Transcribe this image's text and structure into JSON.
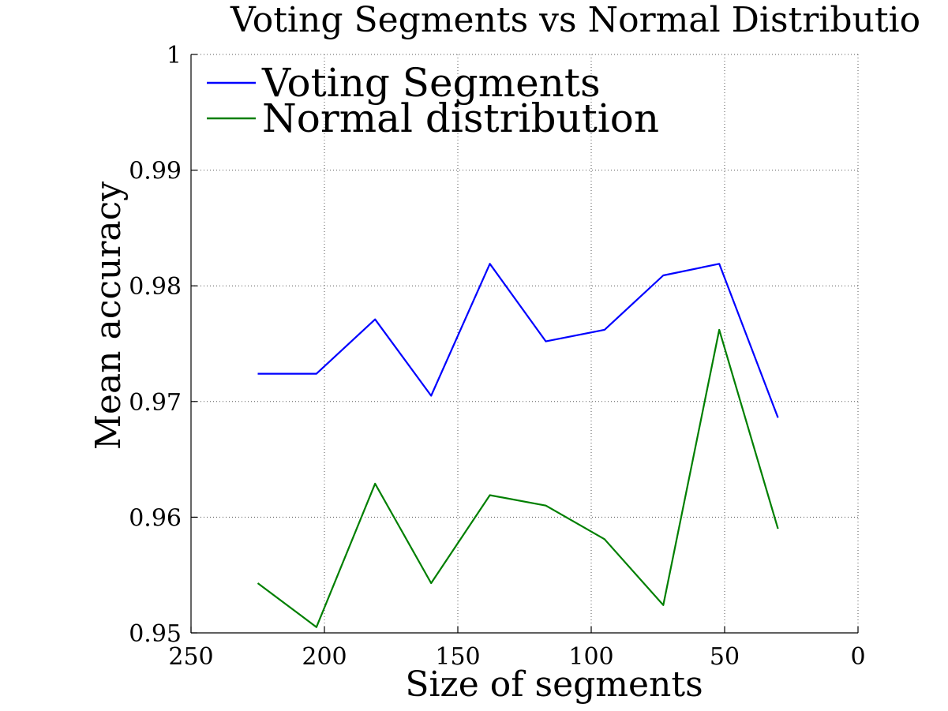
{
  "chart_data": {
    "type": "line",
    "title": "Voting Segments vs Normal Distributio",
    "xlabel": "Size of segments",
    "ylabel": "Mean accuracy",
    "xlim": [
      250,
      0
    ],
    "ylim": [
      0.95,
      1.0
    ],
    "x_reversed": true,
    "grid": true,
    "legend_position": "top-left",
    "x_ticks": [
      250,
      200,
      150,
      100,
      50,
      0
    ],
    "x_tick_labels": [
      "250",
      "200",
      "150",
      "100",
      "50",
      "0"
    ],
    "y_ticks": [
      0.95,
      0.96,
      0.97,
      0.98,
      0.99,
      1.0
    ],
    "y_tick_labels": [
      "0.95",
      "0.96",
      "0.97",
      "0.98",
      "0.99",
      "1"
    ],
    "x": [
      225,
      203,
      181,
      160,
      138,
      117,
      95,
      73,
      52,
      30
    ],
    "series": [
      {
        "name": "Voting Segments",
        "color": "#0000ff",
        "values": [
          0.9724,
          0.9724,
          0.9771,
          0.9705,
          0.9819,
          0.9752,
          0.9762,
          0.9809,
          0.9819,
          0.9686
        ]
      },
      {
        "name": "Normal distribution",
        "color": "#007f00",
        "values": [
          0.9543,
          0.9505,
          0.9629,
          0.9543,
          0.9619,
          0.961,
          0.9581,
          0.9524,
          0.9762,
          0.959
        ]
      }
    ]
  }
}
